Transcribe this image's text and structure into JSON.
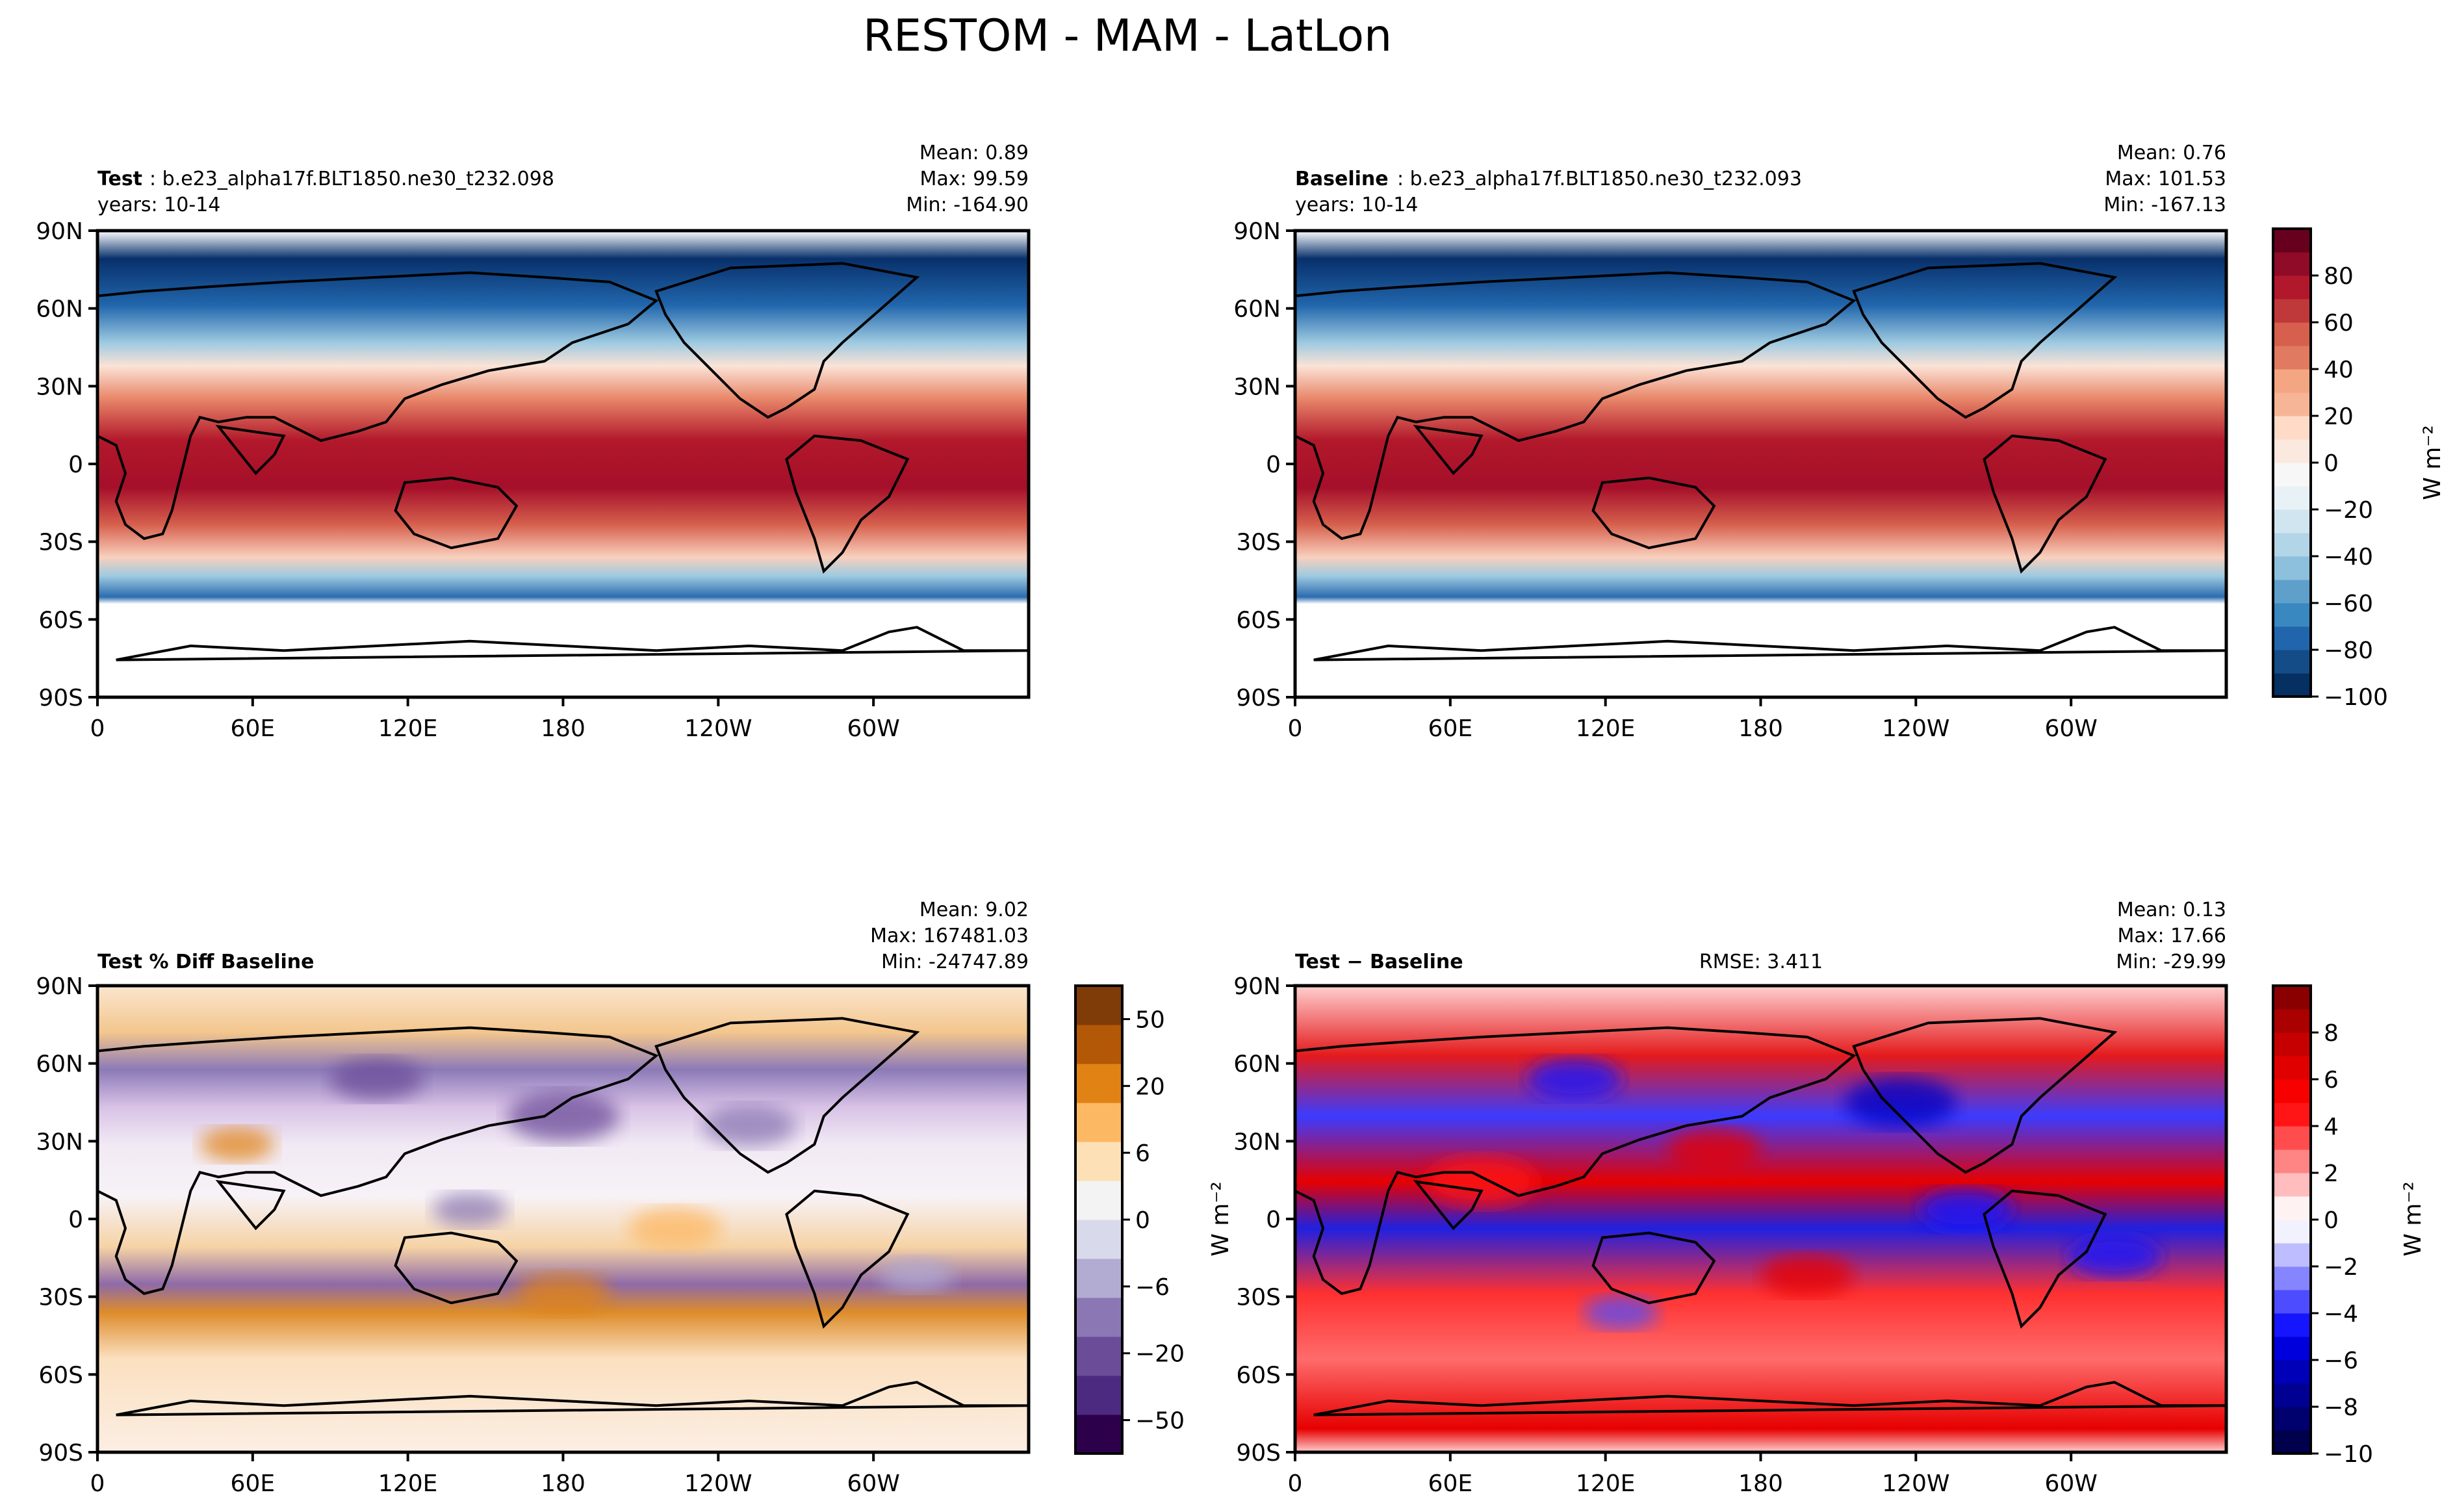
{
  "figure": {
    "title": "RESTOM - MAM - LatLon"
  },
  "chart_data": [
    {
      "type": "heatmap",
      "panel": "test",
      "label_bold": "Test",
      "label_rest": ": b.e23_alpha17f.BLT1850.ne30_t232.098",
      "years": "years: 10-14",
      "stats": [
        "Mean:  0.89",
        "Max: 99.59",
        "Min: -164.90"
      ],
      "rmse": "",
      "xticks": [
        "0",
        "60E",
        "120E",
        "180",
        "120W",
        "60W"
      ],
      "yticks": [
        "90N",
        "60N",
        "30N",
        "0",
        "30S",
        "60S",
        "90S"
      ],
      "xlim": [
        0,
        360
      ],
      "ylim": [
        -90,
        90
      ],
      "colormap": "RdBu_r",
      "ylabel": "",
      "colorbar": null
    },
    {
      "type": "heatmap",
      "panel": "baseline",
      "label_bold": "Baseline",
      "label_rest": ": b.e23_alpha17f.BLT1850.ne30_t232.093",
      "years": "years: 10-14",
      "stats": [
        "Mean:  0.76",
        "Max: 101.53",
        "Min: -167.13"
      ],
      "rmse": "",
      "xticks": [
        "0",
        "60E",
        "120E",
        "180",
        "120W",
        "60W"
      ],
      "yticks": [
        "90N",
        "60N",
        "30N",
        "0",
        "30S",
        "60S",
        "90S"
      ],
      "xlim": [
        0,
        360
      ],
      "ylim": [
        -90,
        90
      ],
      "colormap": "RdBu_r",
      "ylabel": "",
      "colorbar": {
        "label": "W m⁻²",
        "ticks": [
          "80",
          "60",
          "40",
          "20",
          "0",
          "−20",
          "−40",
          "−60",
          "−80",
          "−100"
        ],
        "levels": [
          -100,
          -90,
          -80,
          -70,
          -60,
          -50,
          -40,
          -30,
          -20,
          -10,
          0,
          10,
          20,
          30,
          40,
          50,
          60,
          70,
          80,
          90
        ],
        "colors": [
          "#053061",
          "#134c87",
          "#2166ac",
          "#3a88c0",
          "#5fa0cb",
          "#8cc0dd",
          "#b2d5e7",
          "#d1e5f0",
          "#e8f1f6",
          "#f7f7f7",
          "#fbe9df",
          "#fddbc7",
          "#f6b596",
          "#f4a582",
          "#e07a60",
          "#d6604d",
          "#c0393a",
          "#b2182b",
          "#8f0b27",
          "#67001f"
        ]
      }
    },
    {
      "type": "heatmap",
      "panel": "pct_diff",
      "label_bold": "Test % Diff Baseline",
      "label_rest": "",
      "years": "",
      "stats": [
        "Mean:  9.02",
        "Max: 167481.03",
        "Min: -24747.89"
      ],
      "rmse": "",
      "xticks": [
        "0",
        "60E",
        "120E",
        "180",
        "120W",
        "60W"
      ],
      "yticks": [
        "90N",
        "60N",
        "30N",
        "0",
        "30S",
        "60S",
        "90S"
      ],
      "xlim": [
        0,
        360
      ],
      "ylim": [
        -90,
        90
      ],
      "colormap": "PuOr_r",
      "ylabel": "",
      "colorbar": {
        "label": "",
        "ticks": [
          "50",
          "20",
          "6",
          "0",
          "−6",
          "−20",
          "−50"
        ],
        "colors": [
          "#2d004b",
          "#4b2a80",
          "#6a4c98",
          "#8a77b3",
          "#b2abd2",
          "#d8daeb",
          "#f3f3f3",
          "#fee0b6",
          "#fdb863",
          "#e08214",
          "#b35806",
          "#7f3b08"
        ]
      }
    },
    {
      "type": "heatmap",
      "panel": "diff",
      "label_bold": "Test − Baseline",
      "label_rest": "",
      "years": "",
      "stats": [
        "Mean:  0.13",
        "Max: 17.66",
        "Min: -29.99"
      ],
      "rmse": "RMSE: 3.411",
      "xticks": [
        "0",
        "60E",
        "120E",
        "180",
        "120W",
        "60W"
      ],
      "yticks": [
        "90N",
        "60N",
        "30N",
        "0",
        "30S",
        "60S",
        "90S"
      ],
      "xlim": [
        0,
        360
      ],
      "ylim": [
        -90,
        90
      ],
      "colormap": "seismic",
      "ylabel": "W m⁻²",
      "colorbar": {
        "label": "W m⁻²",
        "ticks": [
          "8",
          "6",
          "4",
          "2",
          "0",
          "−2",
          "−4",
          "−6",
          "−8",
          "−10"
        ],
        "levels": [
          -10,
          -9,
          -8,
          -7,
          -6,
          -5,
          -4,
          -3,
          -2,
          -1,
          0,
          1,
          2,
          3,
          4,
          5,
          6,
          7,
          8,
          9
        ],
        "colors": [
          "#00004c",
          "#00006e",
          "#000093",
          "#0000b8",
          "#0000dd",
          "#1515ff",
          "#4d4dff",
          "#8585ff",
          "#bdbdff",
          "#f2f2ff",
          "#fff2f2",
          "#ffbdbd",
          "#ff8585",
          "#ff4d4d",
          "#ff1515",
          "#f70000",
          "#e00000",
          "#c60000",
          "#aa0000",
          "#8a0000"
        ]
      }
    }
  ]
}
